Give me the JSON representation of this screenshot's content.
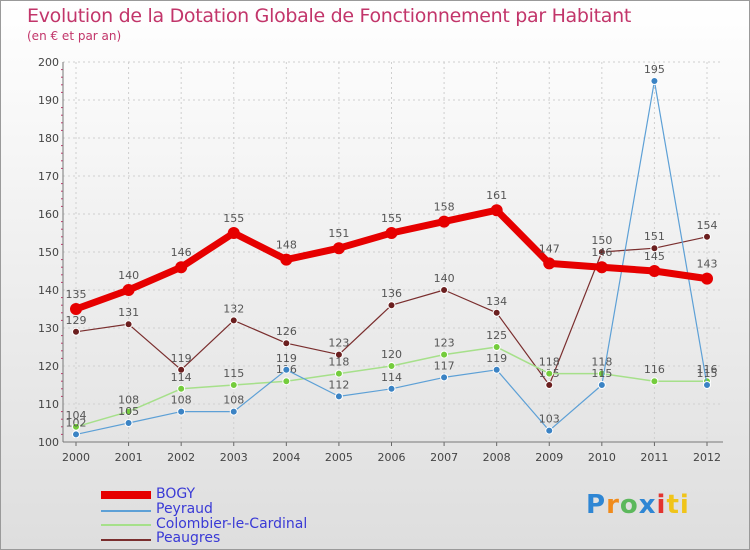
{
  "title": "Evolution de la Dotation Globale de Fonctionnement par Habitant",
  "subtitle": "(en € et par an)",
  "logo": {
    "p": "P",
    "r": "r",
    "o": "o",
    "x": "x",
    "i": "i",
    "t": "ti"
  },
  "chart_data": {
    "type": "line",
    "title": "Evolution de la Dotation Globale de Fonctionnement par Habitant",
    "subtitle": "(en € et par an)",
    "xlabel": "",
    "ylabel": "",
    "ylim": [
      100,
      200
    ],
    "yticks": [
      100,
      110,
      120,
      130,
      140,
      150,
      160,
      170,
      180,
      190,
      200
    ],
    "categories": [
      "2000",
      "2001",
      "2002",
      "2003",
      "2004",
      "2005",
      "2006",
      "2007",
      "2008",
      "2009",
      "2010",
      "2011",
      "2012"
    ],
    "series": [
      {
        "name": "Peaugres",
        "color": "#7a2e2e",
        "marker": "#6b1f1f",
        "width": 1.2,
        "values": [
          129,
          131,
          119,
          132,
          126,
          123,
          136,
          140,
          134,
          115,
          150,
          151,
          154
        ]
      },
      {
        "name": "Colombier-le-Cardinal",
        "color": "#a6e08a",
        "marker": "#74cc3c",
        "width": 1.5,
        "values": [
          104,
          108,
          114,
          115,
          116,
          118,
          120,
          123,
          125,
          118,
          118,
          116,
          116
        ]
      },
      {
        "name": "Peyraud",
        "color": "#5da0d6",
        "marker": "#3b83c4",
        "width": 1.2,
        "values": [
          102,
          105,
          108,
          108,
          119,
          112,
          114,
          117,
          119,
          103,
          115,
          195,
          115
        ]
      },
      {
        "name": "BOGY",
        "color": "#e60000",
        "marker": "#e60000",
        "width": 7,
        "values": [
          135,
          140,
          146,
          155,
          148,
          151,
          155,
          158,
          161,
          147,
          146,
          145,
          143
        ]
      }
    ],
    "legend": [
      "BOGY",
      "Peyraud",
      "Colombier-le-Cardinal",
      "Peaugres"
    ],
    "legend_position": "bottom-left"
  }
}
